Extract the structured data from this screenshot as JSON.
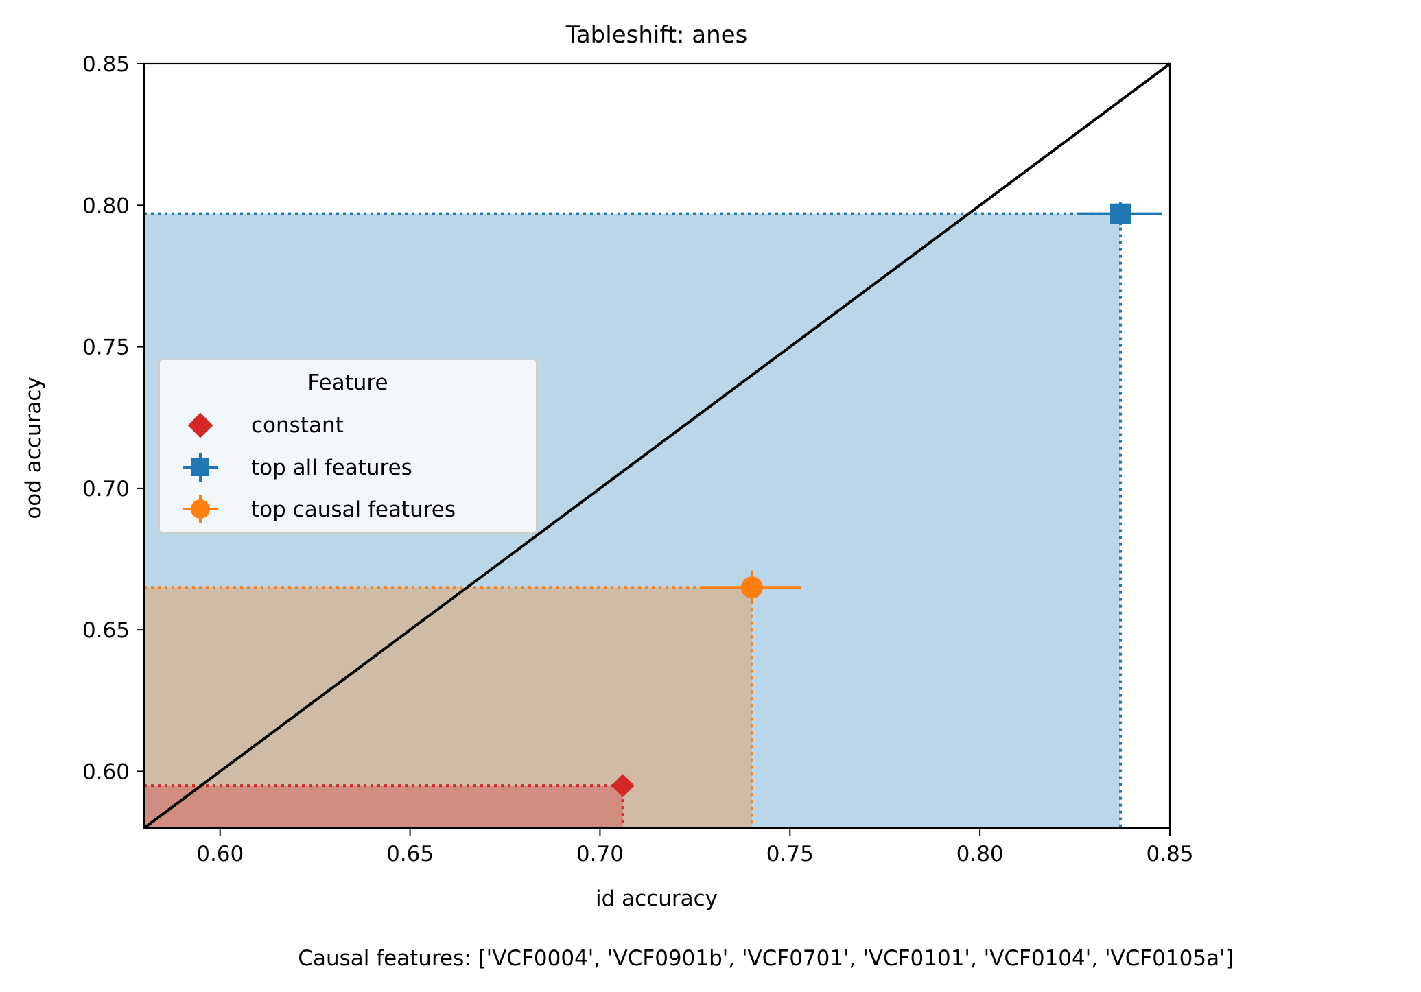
{
  "chart_data": {
    "type": "scatter",
    "title": "Tableshift: anes",
    "xlabel": "id accuracy",
    "ylabel": "ood accuracy",
    "xlim": [
      0.58,
      0.85
    ],
    "ylim": [
      0.58,
      0.85
    ],
    "xticks": [
      "0.60",
      "0.65",
      "0.70",
      "0.75",
      "0.80",
      "0.85"
    ],
    "yticks": [
      "0.60",
      "0.65",
      "0.70",
      "0.75",
      "0.80",
      "0.85"
    ],
    "diagonal": "y = x",
    "legend": {
      "title": "Feature",
      "placement": "center-left",
      "entries": [
        "constant",
        "top all features",
        "top causal features"
      ]
    },
    "series": [
      {
        "name": "constant",
        "x": 0.706,
        "y": 0.595,
        "xerr": 0.0,
        "yerr": 0.0,
        "marker": "diamond",
        "color": "#d62728"
      },
      {
        "name": "top all features",
        "x": 0.837,
        "y": 0.797,
        "xerr": 0.011,
        "yerr": 0.004,
        "marker": "square",
        "color": "#1f77b4"
      },
      {
        "name": "top causal features",
        "x": 0.74,
        "y": 0.665,
        "xerr": 0.013,
        "yerr": 0.006,
        "marker": "circle",
        "color": "#ff7f0e"
      }
    ],
    "footnote": "Causal features: ['VCF0004', 'VCF0901b', 'VCF0701', 'VCF0101', 'VCF0104', 'VCF0105a']"
  }
}
